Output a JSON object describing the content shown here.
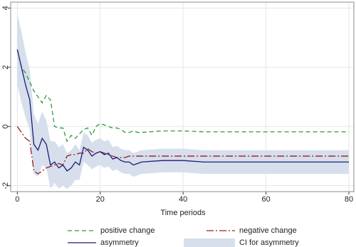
{
  "chart_data": {
    "type": "line",
    "x_label": "Time periods",
    "x": [
      0,
      1,
      2,
      3,
      4,
      5,
      6,
      7,
      8,
      9,
      10,
      11,
      12,
      13,
      14,
      15,
      16,
      17,
      18,
      19,
      20,
      21,
      22,
      23,
      24,
      25,
      26,
      27,
      28,
      29,
      30,
      35,
      40,
      45,
      50,
      55,
      60,
      65,
      70,
      75,
      80
    ],
    "xlim": [
      -1.6,
      81.2
    ],
    "ylim": [
      -2.2,
      4.2
    ],
    "xticks": [
      0,
      20,
      40,
      60,
      80
    ],
    "yticks": [
      -2,
      0,
      2,
      4
    ],
    "grid": true,
    "legend_position": "bottom",
    "series": [
      {
        "name": "positive change",
        "color": "#2e9a3e",
        "dash": "dash",
        "values": [
          2.6,
          2.0,
          1.8,
          1.5,
          1.2,
          1.0,
          0.8,
          1.05,
          0.9,
          0.0,
          -0.05,
          -0.05,
          -0.5,
          -0.3,
          -0.4,
          -0.25,
          -0.1,
          -0.05,
          -0.3,
          0.0,
          0.1,
          0.05,
          0.0,
          -0.05,
          -0.05,
          -0.1,
          -0.2,
          -0.2,
          -0.15,
          -0.2,
          -0.2,
          -0.15,
          -0.15,
          -0.18,
          -0.18,
          -0.18,
          -0.18,
          -0.18,
          -0.18,
          -0.18,
          -0.18
        ]
      },
      {
        "name": "negative change",
        "color": "#9a1a2a",
        "dash": "longdash",
        "values": [
          0.0,
          -0.2,
          -0.4,
          -0.5,
          -1.5,
          -1.6,
          -1.5,
          -1.4,
          -1.35,
          -1.3,
          -1.25,
          -1.3,
          -1.0,
          -0.95,
          -0.95,
          -0.9,
          -0.9,
          -0.75,
          -0.85,
          -0.9,
          -0.85,
          -0.9,
          -0.95,
          -1.0,
          -1.05,
          -1.05,
          -1.05,
          -1.0,
          -1.0,
          -1.0,
          -1.0,
          -1.0,
          -1.0,
          -1.0,
          -1.0,
          -1.0,
          -1.0,
          -1.0,
          -1.0,
          -1.0,
          -1.0
        ]
      },
      {
        "name": "asymmetry",
        "color": "#1c1c78",
        "dash": "solid",
        "values": [
          2.6,
          2.0,
          1.4,
          0.9,
          -0.6,
          -0.8,
          -0.4,
          -0.6,
          -1.3,
          -1.2,
          -1.4,
          -1.3,
          -1.5,
          -1.4,
          -1.2,
          -1.3,
          -0.7,
          -0.8,
          -1.0,
          -0.9,
          -0.85,
          -0.95,
          -0.9,
          -1.1,
          -1.05,
          -1.15,
          -1.2,
          -1.2,
          -1.3,
          -1.25,
          -1.2,
          -1.15,
          -1.15,
          -1.2,
          -1.2,
          -1.2,
          -1.2,
          -1.2,
          -1.2,
          -1.2,
          -1.2
        ]
      }
    ],
    "band": {
      "name": "CI for asymmetry",
      "color": "#d6dfeb",
      "lower": [
        1.4,
        0.8,
        0.3,
        -0.1,
        -1.6,
        -1.7,
        -1.3,
        -1.4,
        -2.1,
        -1.9,
        -2.1,
        -2.0,
        -2.1,
        -2.0,
        -1.8,
        -1.8,
        -1.2,
        -1.3,
        -1.45,
        -1.35,
        -1.3,
        -1.4,
        -1.35,
        -1.5,
        -1.45,
        -1.55,
        -1.6,
        -1.6,
        -1.7,
        -1.65,
        -1.6,
        -1.55,
        -1.55,
        -1.6,
        -1.6,
        -1.6,
        -1.6,
        -1.6,
        -1.6,
        -1.6,
        -1.6
      ],
      "upper": [
        3.8,
        3.2,
        2.5,
        1.9,
        0.4,
        0.1,
        0.5,
        0.2,
        -0.5,
        -0.5,
        -0.7,
        -0.6,
        -0.9,
        -0.8,
        -0.6,
        -0.8,
        -0.2,
        -0.3,
        -0.55,
        -0.45,
        -0.4,
        -0.5,
        -0.45,
        -0.7,
        -0.65,
        -0.75,
        -0.8,
        -0.8,
        -0.9,
        -0.85,
        -0.8,
        -0.75,
        -0.75,
        -0.8,
        -0.8,
        -0.8,
        -0.8,
        -0.8,
        -0.8,
        -0.8,
        -0.8
      ]
    }
  }
}
